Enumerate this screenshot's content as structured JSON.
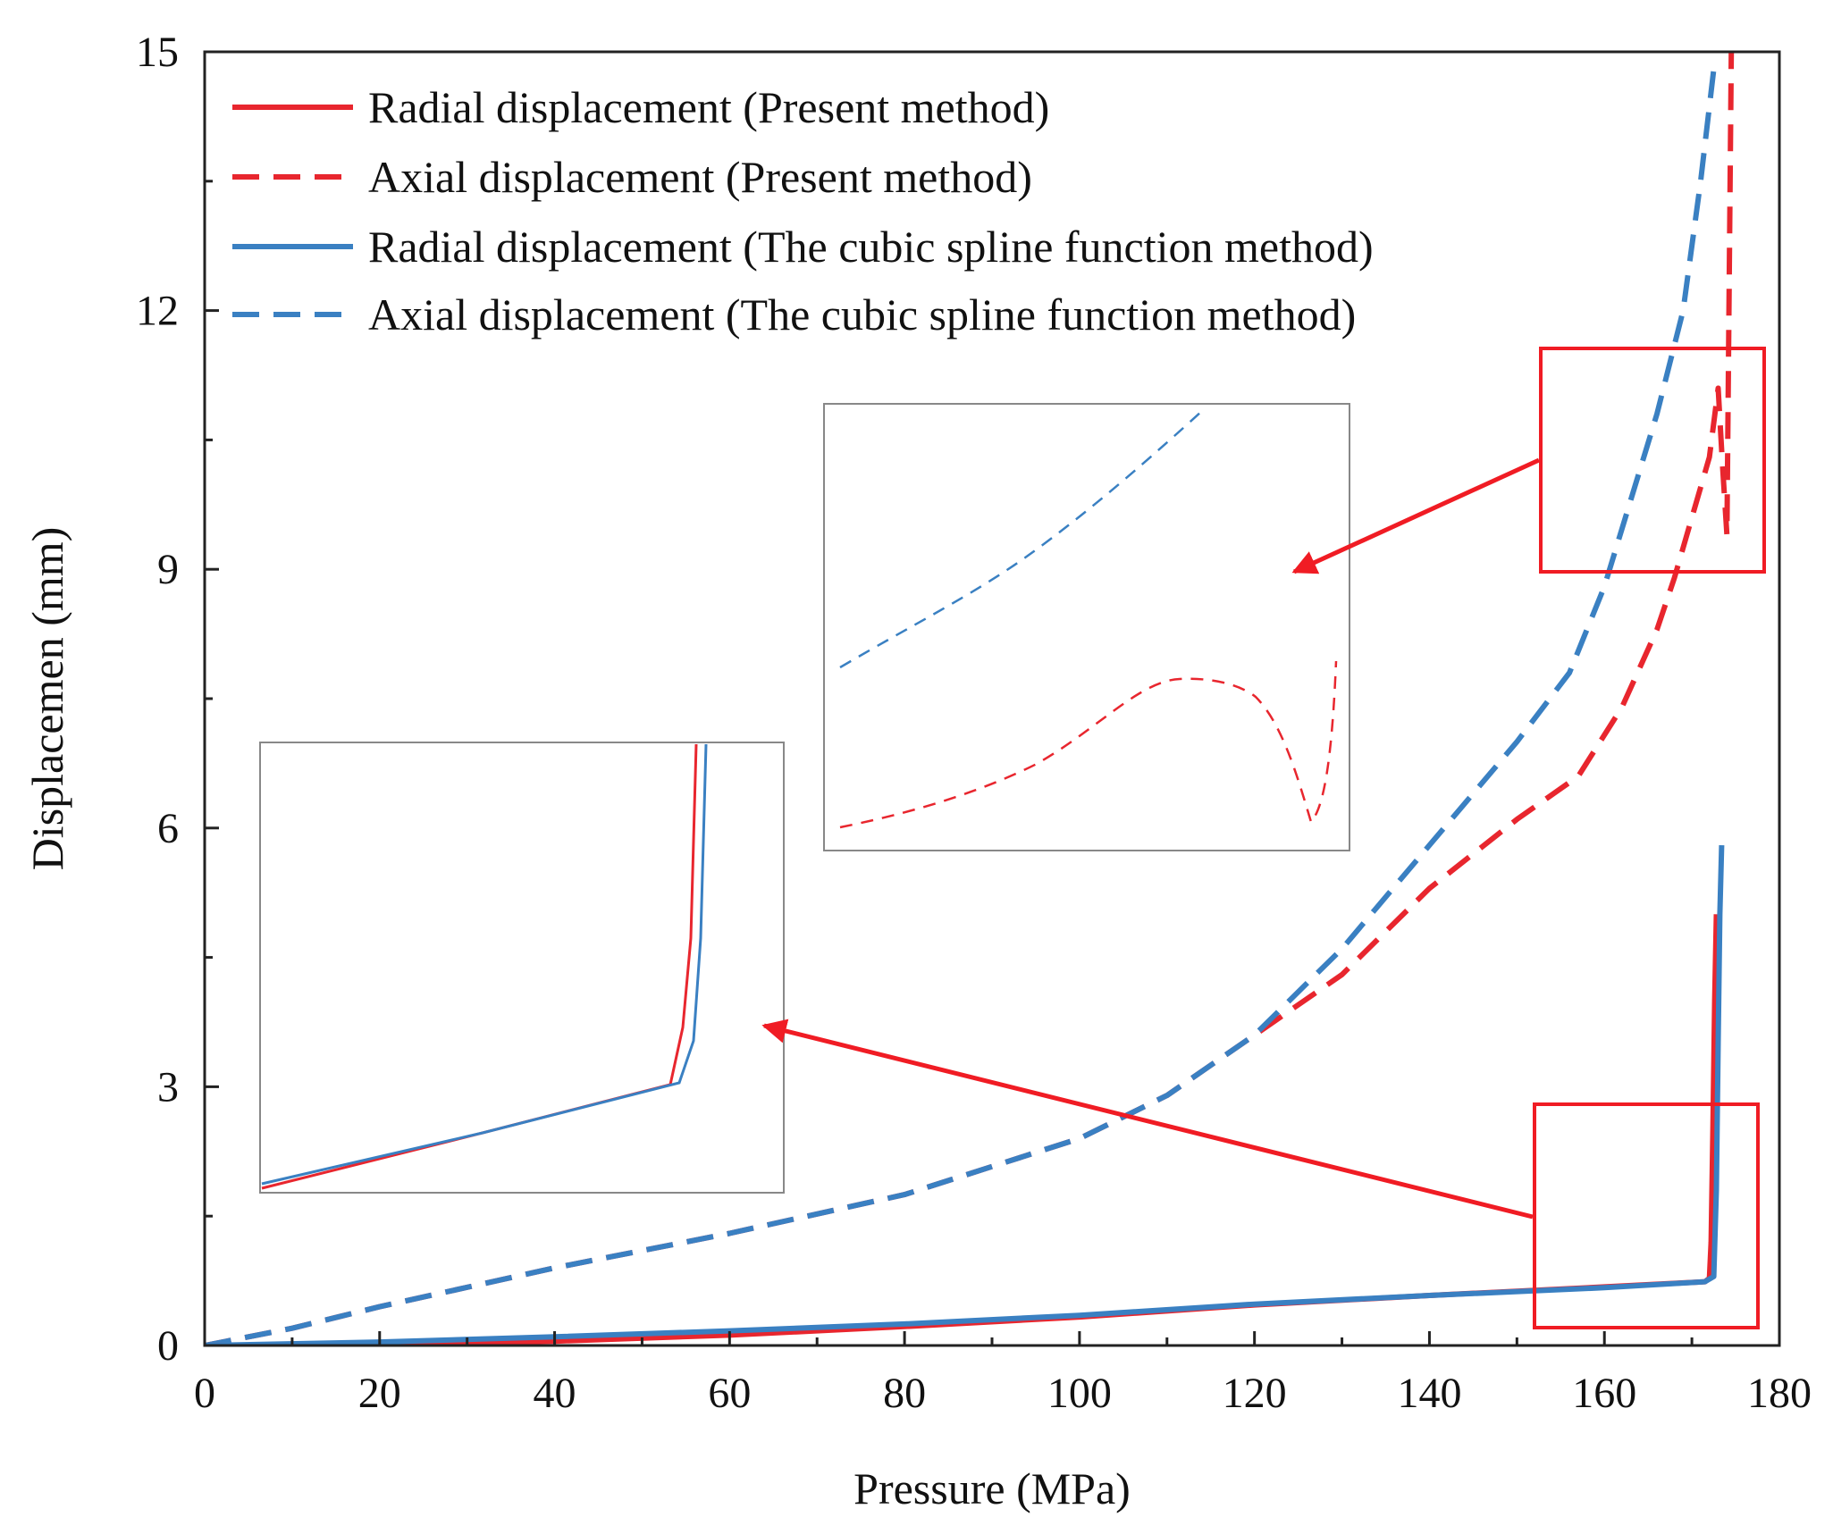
{
  "chart_data": {
    "type": "line",
    "title": "",
    "xlabel": "Pressure (MPa)",
    "ylabel": "Displacemen (mm)",
    "xlim": [
      0,
      180
    ],
    "ylim": [
      0,
      15
    ],
    "xticks": [
      0,
      20,
      40,
      60,
      80,
      100,
      120,
      140,
      160,
      180
    ],
    "xtick_labels": [
      "0",
      "20",
      "40",
      "60",
      "80",
      "100",
      "120",
      "140",
      "160",
      "180"
    ],
    "yticks": [
      0,
      3,
      6,
      9,
      12,
      15
    ],
    "ytick_labels": [
      "0",
      "3",
      "6",
      "9",
      "12",
      "15"
    ],
    "grid": false,
    "legend_position": "top-left",
    "colors": {
      "present": "#e8262e",
      "spline": "#3a80c2",
      "annotation": "#f01c24",
      "inset_border": "#888888"
    },
    "series": [
      {
        "name": "Radial displacement (Present method)",
        "color": "#e8262e",
        "style": "solid",
        "x": [
          0,
          20,
          40,
          60,
          80,
          100,
          120,
          140,
          160,
          171.5,
          172.0,
          172.2,
          172.4,
          172.6,
          172.8
        ],
        "y": [
          0,
          0.02,
          0.05,
          0.12,
          0.22,
          0.33,
          0.47,
          0.58,
          0.68,
          0.74,
          0.78,
          1.2,
          2.5,
          4.0,
          5.0
        ]
      },
      {
        "name": "Axial displacement (Present method)",
        "color": "#e8262e",
        "style": "dashed",
        "x": [
          0,
          10,
          20,
          40,
          60,
          80,
          100,
          110,
          120,
          130,
          140,
          150,
          157,
          162,
          166,
          168,
          170,
          172,
          173.0,
          173.5,
          174.0,
          174.5
        ],
        "y": [
          0,
          0.2,
          0.45,
          0.9,
          1.3,
          1.75,
          2.4,
          2.9,
          3.6,
          4.3,
          5.3,
          6.1,
          6.6,
          7.4,
          8.3,
          8.9,
          9.6,
          10.3,
          11.1,
          10.2,
          9.4,
          15.0
        ]
      },
      {
        "name": "Radial displacement (The cubic spline function method)",
        "color": "#3a80c2",
        "style": "solid",
        "x": [
          0,
          20,
          40,
          60,
          80,
          100,
          120,
          140,
          160,
          171.5,
          172.5,
          172.8,
          173.0,
          173.2,
          173.4
        ],
        "y": [
          0,
          0.04,
          0.1,
          0.17,
          0.25,
          0.35,
          0.48,
          0.58,
          0.67,
          0.74,
          0.8,
          1.8,
          3.5,
          5.0,
          5.8
        ]
      },
      {
        "name": "Axial displacement (The cubic spline function method)",
        "color": "#3a80c2",
        "style": "dashed",
        "x": [
          0,
          10,
          20,
          40,
          60,
          80,
          100,
          110,
          120,
          130,
          140,
          150,
          156,
          160,
          163,
          166,
          169,
          171,
          172.5
        ],
        "y": [
          0,
          0.2,
          0.45,
          0.9,
          1.3,
          1.75,
          2.4,
          2.9,
          3.6,
          4.6,
          5.8,
          7.0,
          7.8,
          8.8,
          9.8,
          10.8,
          12.0,
          13.5,
          14.8
        ]
      }
    ],
    "annotations": [
      {
        "name": "zoom-box-upper",
        "x_range": [
          152.5,
          178.0
        ],
        "y_range": [
          9.0,
          11.6
        ]
      },
      {
        "name": "zoom-box-lower",
        "x_range": [
          152.0,
          177.5
        ],
        "y_range": [
          0.2,
          2.8
        ]
      }
    ]
  }
}
